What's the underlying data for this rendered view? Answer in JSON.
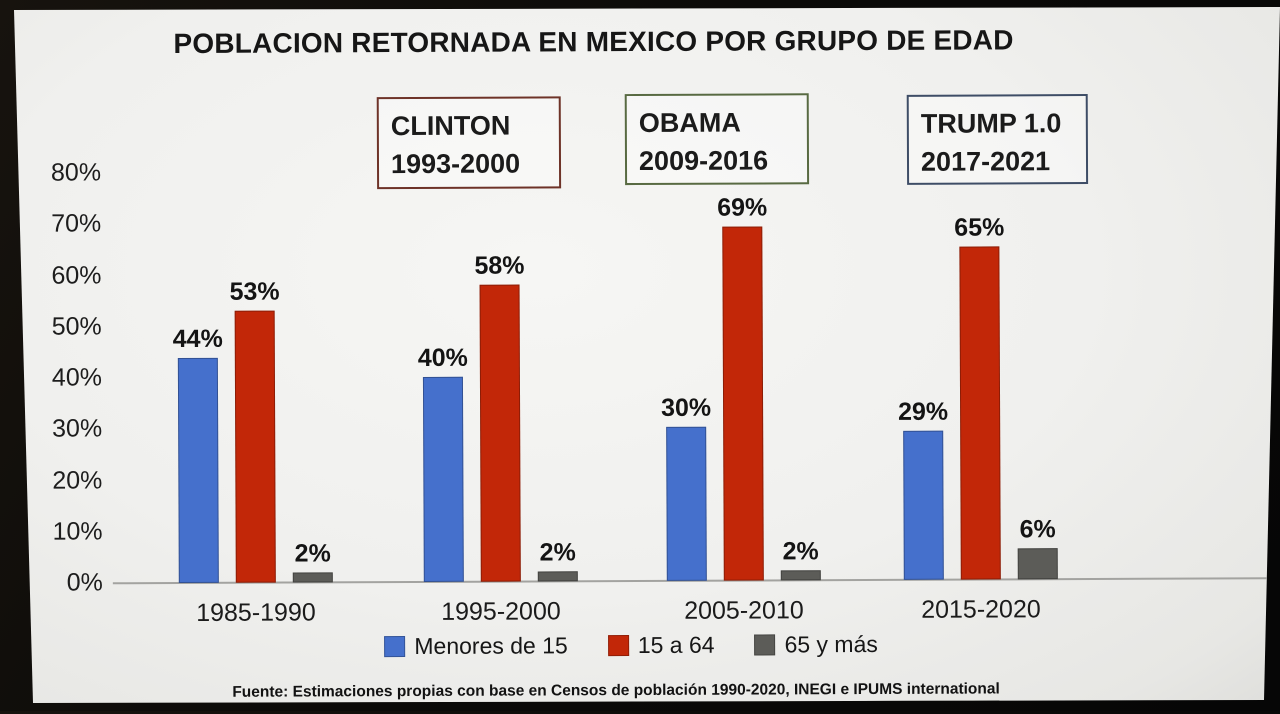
{
  "screen": {
    "title": "POBLACION RETORNADA EN MEXICO POR GRUPO DE EDAD",
    "source_note": "Fuente: Estimaciones propias con base en Censos de población 1990-2020, INEGI e IPUMS international"
  },
  "president_boxes": [
    {
      "name": "CLINTON",
      "years": "1993-2000",
      "border_color": "#6e3328"
    },
    {
      "name": "OBAMA",
      "years": "2009-2016",
      "border_color": "#586a42"
    },
    {
      "name": "TRUMP 1.0",
      "years": "2017-2021",
      "border_color": "#3e4d66"
    }
  ],
  "chart_data": {
    "type": "bar",
    "title": "POBLACION RETORNADA EN MEXICO POR GRUPO DE EDAD",
    "categories": [
      "1985-1990",
      "1995-2000",
      "2005-2010",
      "2015-2020"
    ],
    "series": [
      {
        "name": "Menores de 15",
        "color": "#4570cc",
        "values": [
          44,
          40,
          30,
          29
        ]
      },
      {
        "name": "15 a 64",
        "color": "#c22708",
        "values": [
          53,
          58,
          69,
          65
        ]
      },
      {
        "name": "65 y más",
        "color": "#5c5c58",
        "values": [
          2,
          2,
          2,
          6
        ]
      }
    ],
    "value_labels": [
      [
        "44%",
        "40%",
        "30%",
        "29%"
      ],
      [
        "53%",
        "58%",
        "69%",
        "65%"
      ],
      [
        "2%",
        "2%",
        "2%",
        "6%"
      ]
    ],
    "xlabel": "",
    "ylabel": "",
    "ylim": [
      0,
      80
    ],
    "y_axis_ticks": [
      "80%",
      "70%",
      "60%",
      "50%",
      "40%",
      "30%",
      "20%",
      "10%",
      "0%"
    ],
    "grid": false,
    "legend_position": "bottom"
  }
}
